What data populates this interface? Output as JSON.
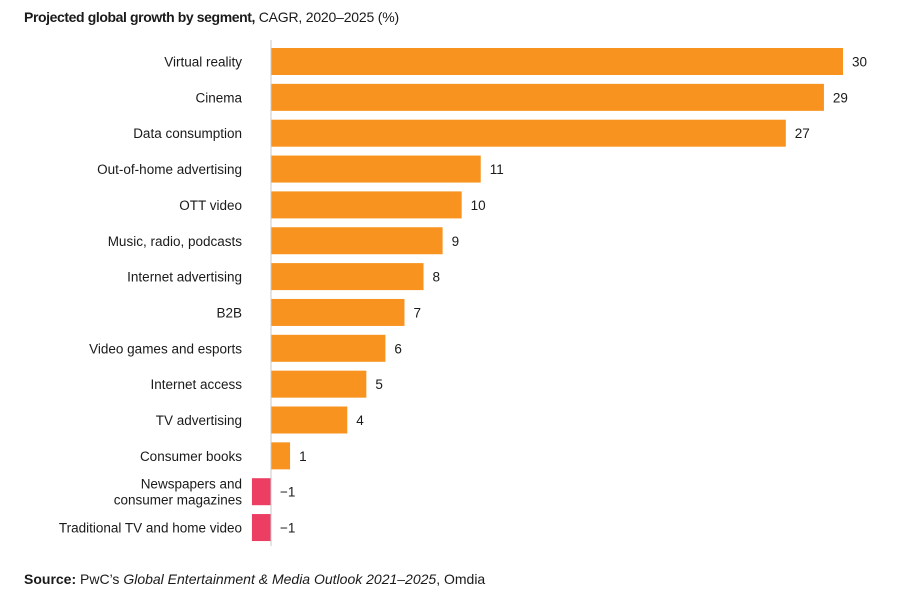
{
  "header": {
    "title_bold": "Projected global growth by segment,",
    "title_rest": " CAGR, 2020–2025 (%)"
  },
  "footer": {
    "source_label": "Source:",
    "source_pre": " PwC’s ",
    "source_italic": "Global Entertainment & Media Outlook 2021–2025",
    "source_post": ", Omdia"
  },
  "colors": {
    "positive": "#F7931E",
    "negative": "#EC3E63",
    "axis": "#c8c8c8"
  },
  "chart_data": {
    "type": "bar",
    "orientation": "horizontal",
    "title": "Projected global growth by segment, CAGR, 2020–2025 (%)",
    "xlabel": "",
    "ylabel": "",
    "xlim": [
      -1,
      30
    ],
    "grid": false,
    "categories": [
      [
        "Virtual reality"
      ],
      [
        "Cinema"
      ],
      [
        "Data consumption"
      ],
      [
        "Out-of-home advertising"
      ],
      [
        "OTT video"
      ],
      [
        "Music, radio, podcasts"
      ],
      [
        "Internet advertising"
      ],
      [
        "B2B"
      ],
      [
        "Video games and esports"
      ],
      [
        "Internet access"
      ],
      [
        "TV advertising"
      ],
      [
        "Consumer books"
      ],
      [
        "Newspapers and",
        "consumer magazines"
      ],
      [
        "Traditional TV and home video"
      ]
    ],
    "values": [
      30,
      29,
      27,
      11,
      10,
      9,
      8,
      7,
      6,
      5,
      4,
      1,
      -1,
      -1
    ],
    "value_labels": [
      "30",
      "29",
      "27",
      "11",
      "10",
      "9",
      "8",
      "7",
      "6",
      "5",
      "4",
      "1",
      "−1",
      "−1"
    ]
  }
}
